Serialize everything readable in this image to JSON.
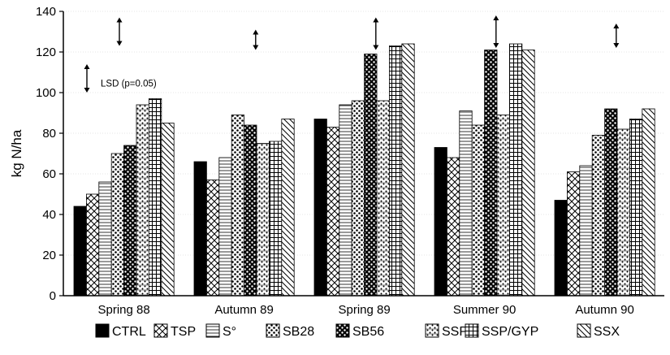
{
  "chart_data": {
    "type": "bar",
    "ylabel": "kg N/ha",
    "ylim": [
      0,
      140
    ],
    "yticks": [
      0,
      20,
      40,
      60,
      80,
      100,
      120,
      140
    ],
    "categories": [
      "Spring 88",
      "Autumn 89",
      "Spring 89",
      "Summer 90",
      "Autumn 90"
    ],
    "series": [
      {
        "name": "CTRL",
        "values": [
          44,
          66,
          87,
          73,
          47
        ]
      },
      {
        "name": "TSP",
        "values": [
          50,
          57,
          83,
          68,
          61
        ]
      },
      {
        "name": "S°",
        "values": [
          56,
          68,
          94,
          91,
          64
        ]
      },
      {
        "name": "SB28",
        "values": [
          70,
          89,
          96,
          84,
          79
        ]
      },
      {
        "name": "SB56",
        "values": [
          74,
          84,
          119,
          121,
          92
        ]
      },
      {
        "name": "SSP",
        "values": [
          94,
          75,
          96,
          89,
          82
        ]
      },
      {
        "name": "SSP/GYP",
        "values": [
          97,
          76,
          123,
          124,
          87
        ]
      },
      {
        "name": "SSX",
        "values": [
          85,
          87,
          124,
          121,
          92
        ]
      }
    ],
    "annotation": "LSD (p=0.05)",
    "lsd_bars": [
      {
        "category": "Spring 88",
        "center": 107,
        "half": 7
      },
      {
        "category": "Spring 88",
        "center": 130,
        "half": 7
      },
      {
        "category": "Autumn 89",
        "center": 126,
        "half": 5
      },
      {
        "category": "Spring 89",
        "center": 129,
        "half": 8
      },
      {
        "category": "Summer 90",
        "center": 130,
        "half": 8
      },
      {
        "category": "Autumn 90",
        "center": 128,
        "half": 6
      }
    ],
    "legend_position": "bottom",
    "colors": {
      "bar_stroke": "#000000",
      "background": "#ffffff"
    }
  }
}
